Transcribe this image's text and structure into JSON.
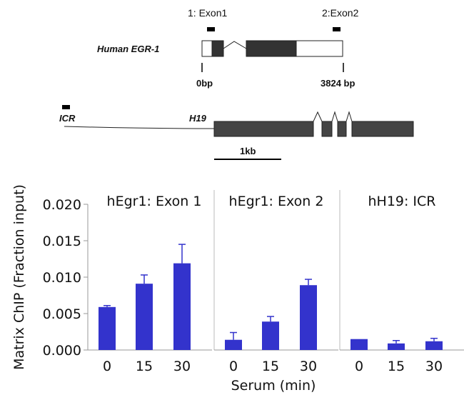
{
  "diagram": {
    "egr1": {
      "gene_label": "Human EGR-1",
      "exon1_label": "1: Exon1",
      "exon2_label": "2:Exon2",
      "start_label": "0bp",
      "end_label": "3824 bp"
    },
    "h19": {
      "icr_label": "ICR",
      "gene_label": "H19",
      "scale_label": "1kb"
    }
  },
  "chart_data": {
    "type": "bar",
    "ylabel": "Matrix ChIP (Fraction input)",
    "xlabel": "Serum (min)",
    "ylim": [
      0,
      0.02
    ],
    "yticks": [
      "0.000",
      "0.005",
      "0.010",
      "0.015",
      "0.020"
    ],
    "ytick_values": [
      0,
      0.005,
      0.01,
      0.015,
      0.02
    ],
    "bar_color": "#3333cc",
    "panels": [
      {
        "title": "hEgr1: Exon 1",
        "categories": [
          "0",
          "15",
          "30"
        ],
        "values": [
          0.0059,
          0.0091,
          0.0119
        ],
        "errors": [
          0.0002,
          0.0012,
          0.0026
        ]
      },
      {
        "title": "hEgr1: Exon 2",
        "categories": [
          "0",
          "15",
          "30"
        ],
        "values": [
          0.0014,
          0.0039,
          0.0089
        ],
        "errors": [
          0.001,
          0.0007,
          0.0008
        ]
      },
      {
        "title": "hH19: ICR",
        "categories": [
          "0",
          "15",
          "30"
        ],
        "values": [
          0.0015,
          0.0009,
          0.0012
        ],
        "errors": [
          0,
          0.0004,
          0.0004
        ]
      }
    ]
  }
}
